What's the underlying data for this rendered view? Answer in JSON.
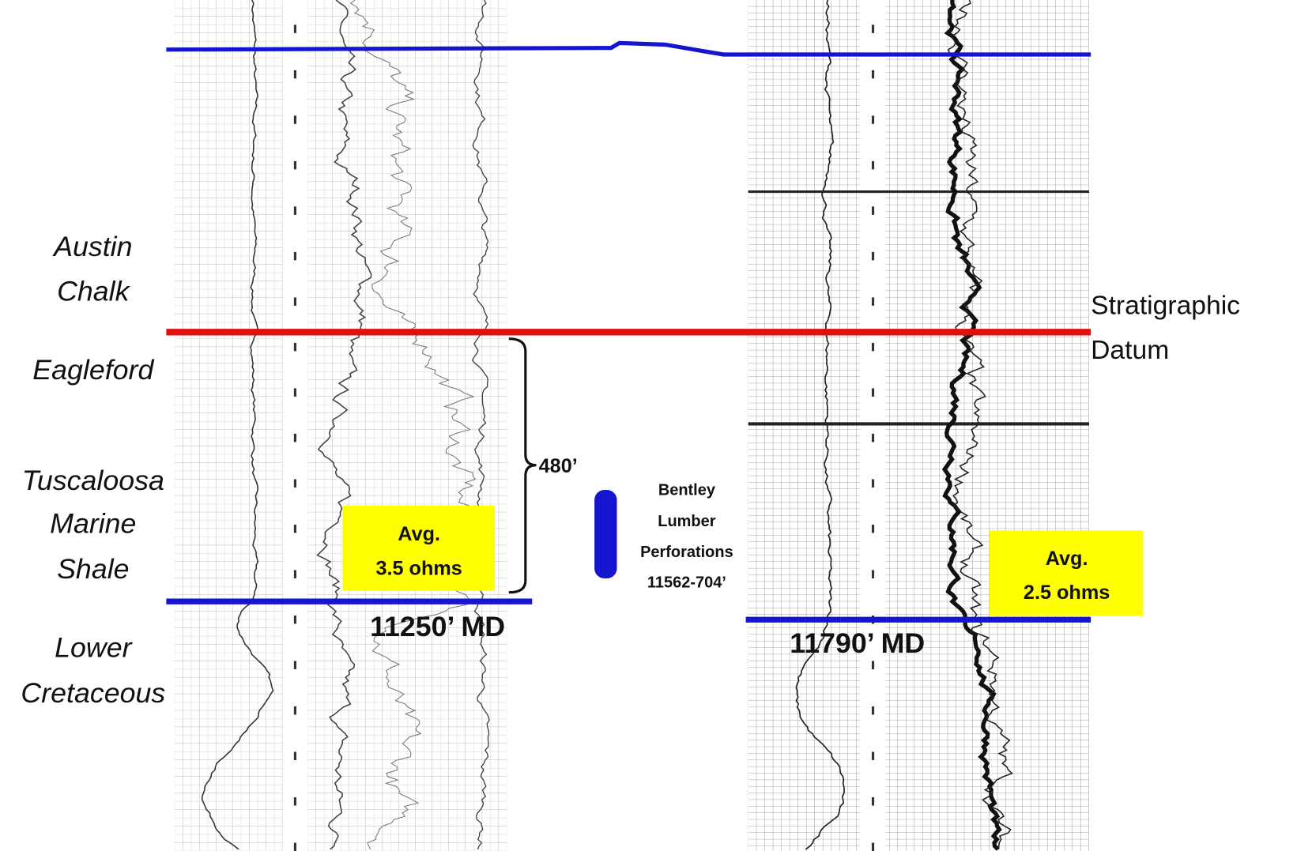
{
  "formation_labels": [
    {
      "lines": [
        "Austin",
        "Chalk"
      ]
    },
    {
      "lines": [
        "Eagleford"
      ]
    },
    {
      "lines": [
        "Tuscaloosa",
        "Marine",
        "Shale"
      ]
    },
    {
      "lines": [
        "Lower",
        "Cretaceous"
      ]
    }
  ],
  "datum_label": {
    "lines": [
      "Stratigraphic",
      "Datum"
    ]
  },
  "thickness_label": "480’",
  "left_well": {
    "depth_label": "11250’ MD",
    "average_box": {
      "lines": [
        "Avg.",
        "3.5 ohms"
      ]
    }
  },
  "right_well": {
    "depth_label": "11790’ MD",
    "average_box": {
      "lines": [
        "Avg.",
        "2.5 ohms"
      ]
    }
  },
  "perforations": {
    "lines": [
      "Bentley",
      "Lumber",
      "Perforations",
      "11562-704’"
    ]
  }
}
